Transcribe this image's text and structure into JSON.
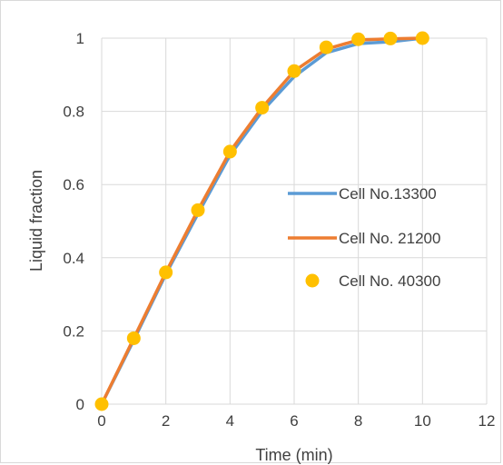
{
  "chart_data": {
    "type": "line",
    "title": "",
    "xlabel": "Time (min)",
    "ylabel": "Liquid fraction",
    "xlim": [
      0,
      12
    ],
    "ylim": [
      0,
      1
    ],
    "x_ticks": [
      "0",
      "2",
      "4",
      "6",
      "8",
      "10",
      "12"
    ],
    "y_ticks": [
      "0",
      "0.2",
      "0.4",
      "0.6",
      "0.8",
      "1"
    ],
    "grid": true,
    "legend_position": "right",
    "series": [
      {
        "name": "Cell No.13300",
        "style": "line",
        "color": "#5b9bd5",
        "x": [
          0,
          1,
          2,
          3,
          4,
          5,
          6,
          7,
          8,
          9,
          10
        ],
        "y": [
          0,
          0.175,
          0.355,
          0.52,
          0.68,
          0.8,
          0.895,
          0.96,
          0.985,
          0.99,
          1.0
        ]
      },
      {
        "name": "Cell No. 21200",
        "style": "line",
        "color": "#ed7d31",
        "x": [
          0,
          1,
          2,
          3,
          4,
          5,
          6,
          7,
          8,
          9,
          10
        ],
        "y": [
          0,
          0.18,
          0.36,
          0.53,
          0.69,
          0.81,
          0.91,
          0.97,
          0.995,
          0.998,
          1.0
        ]
      },
      {
        "name": "Cell No. 40300",
        "style": "marker",
        "color": "#ffc000",
        "x": [
          0,
          1,
          2,
          3,
          4,
          5,
          6,
          7,
          8,
          9,
          10
        ],
        "y": [
          0,
          0.18,
          0.36,
          0.53,
          0.69,
          0.81,
          0.91,
          0.975,
          0.997,
          0.999,
          1.0
        ]
      }
    ]
  }
}
